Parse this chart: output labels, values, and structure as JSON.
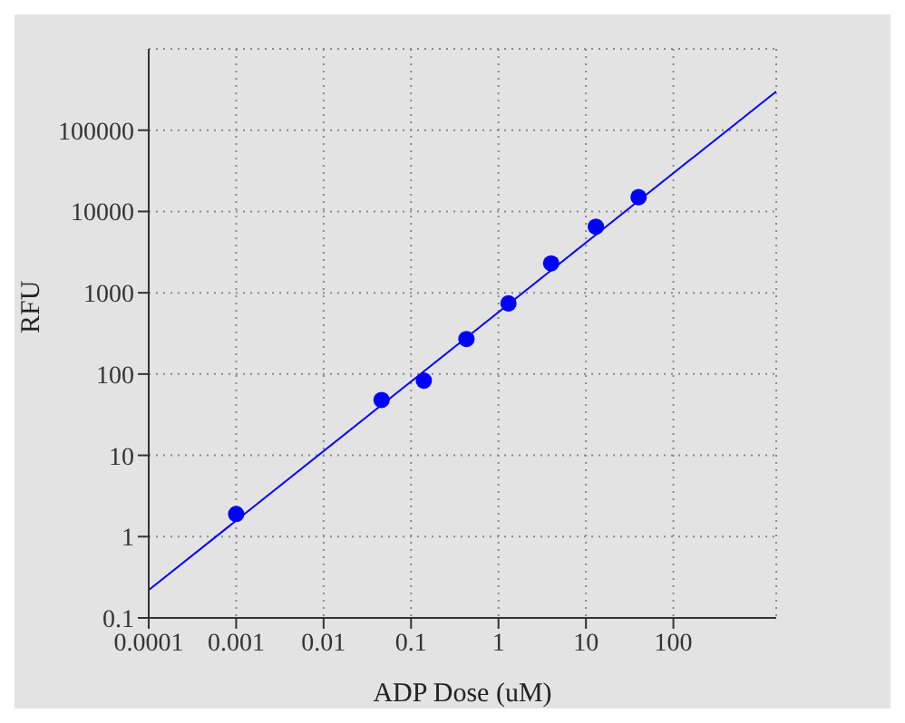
{
  "chart_data": {
    "type": "scatter",
    "xlabel": "ADP Dose (uM)",
    "ylabel": "RFU",
    "log": "xy",
    "grid": true,
    "xlim": [
      0.0001,
      1500
    ],
    "ylim": [
      0.1,
      1000000
    ],
    "xticks": [
      0.0001,
      0.001,
      0.01,
      0.1,
      1,
      10,
      100
    ],
    "yticks": [
      0.1,
      1,
      10,
      100,
      1000,
      10000,
      100000
    ],
    "series": [
      {
        "marker": "circle",
        "color": "#0000ff",
        "x": [
          0.001,
          0.046,
          0.14,
          0.43,
          1.3,
          4,
          13,
          40
        ],
        "values": [
          1.9,
          48,
          83,
          270,
          740,
          2300,
          6500,
          15000
        ]
      },
      {
        "type": "line",
        "marker": "none",
        "color": "#0000ff",
        "x": [
          0.0001,
          1500
        ],
        "values": [
          0.22,
          300000
        ]
      }
    ]
  }
}
